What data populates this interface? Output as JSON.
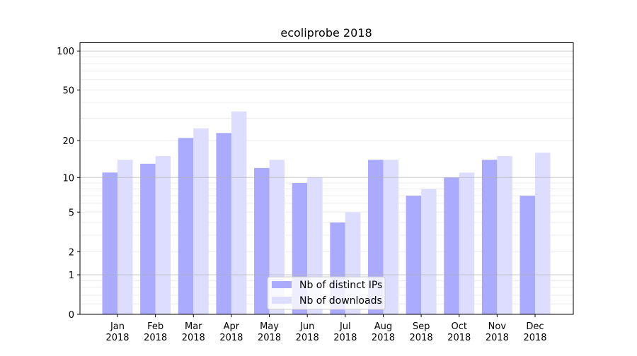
{
  "chart_data": {
    "type": "bar",
    "title": "ecoliprobe 2018",
    "xlabel": "",
    "ylabel": "",
    "yscale": "log10(1+y)",
    "ylim": [
      0,
      116
    ],
    "yticks": [
      0,
      1,
      2,
      5,
      10,
      20,
      50,
      100
    ],
    "categories": [
      "Jan\n2018",
      "Feb\n2018",
      "Mar\n2018",
      "Apr\n2018",
      "May\n2018",
      "Jun\n2018",
      "Jul\n2018",
      "Aug\n2018",
      "Sep\n2018",
      "Oct\n2018",
      "Nov\n2018",
      "Dec\n2018"
    ],
    "series": [
      {
        "name": "Nb of distinct IPs",
        "color": "#aaaaff",
        "values": [
          11,
          13,
          21,
          23,
          12,
          9,
          4,
          14,
          7,
          10,
          14,
          7
        ]
      },
      {
        "name": "Nb of downloads",
        "color": "#ddddff",
        "values": [
          14,
          15,
          25,
          34,
          14,
          10,
          5,
          14,
          8,
          11,
          15,
          16
        ]
      }
    ],
    "grid": true,
    "legend": "bottom-center"
  }
}
